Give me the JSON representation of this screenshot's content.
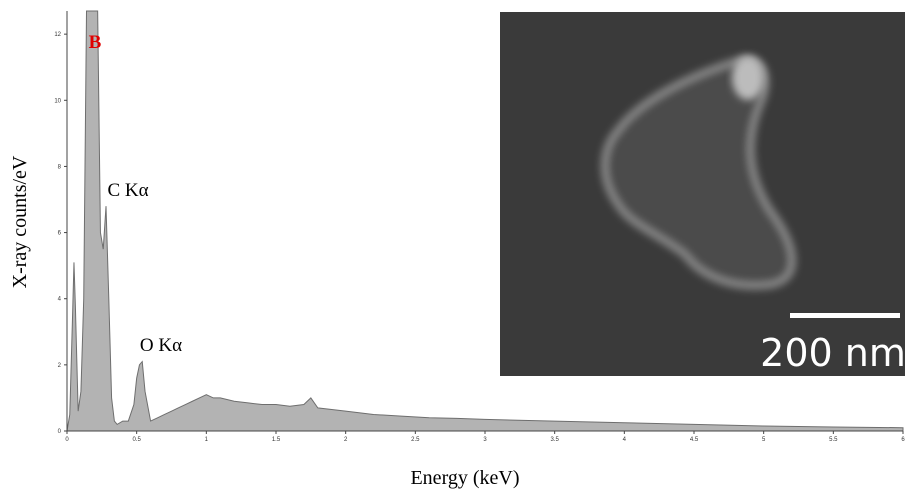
{
  "chart_data": {
    "type": "area",
    "x_label": "Energy (keV)",
    "y_label": "X-ray counts/eV",
    "x": [
      0,
      0.02,
      0.04,
      0.05,
      0.06,
      0.08,
      0.1,
      0.12,
      0.14,
      0.16,
      0.18,
      0.2,
      0.22,
      0.24,
      0.26,
      0.28,
      0.3,
      0.32,
      0.34,
      0.36,
      0.4,
      0.44,
      0.48,
      0.5,
      0.52,
      0.54,
      0.56,
      0.6,
      0.65,
      0.7,
      0.75,
      0.8,
      0.85,
      0.9,
      0.95,
      1.0,
      1.05,
      1.1,
      1.2,
      1.3,
      1.4,
      1.5,
      1.6,
      1.7,
      1.75,
      1.8,
      1.9,
      2.0,
      2.2,
      2.4,
      2.6,
      2.8,
      3.0,
      3.5,
      4.0,
      4.5,
      5.0,
      5.5,
      6.0
    ],
    "values": [
      0,
      0.5,
      3.5,
      5.1,
      3.8,
      0.6,
      1.2,
      4.0,
      12.7,
      12.7,
      12.7,
      12.7,
      12.7,
      6.0,
      5.5,
      6.8,
      4.0,
      1.0,
      0.3,
      0.2,
      0.3,
      0.3,
      0.8,
      1.6,
      2.0,
      2.1,
      1.2,
      0.3,
      0.4,
      0.5,
      0.6,
      0.7,
      0.8,
      0.9,
      1.0,
      1.1,
      1.0,
      1.0,
      0.9,
      0.85,
      0.8,
      0.8,
      0.75,
      0.8,
      1.0,
      0.7,
      0.65,
      0.6,
      0.5,
      0.45,
      0.4,
      0.38,
      0.35,
      0.3,
      0.25,
      0.2,
      0.15,
      0.12,
      0.1
    ],
    "color": "#b3b3b3",
    "xlim": [
      0,
      6
    ],
    "ylim": [
      0,
      12.7
    ],
    "xticks": [
      0,
      0.5,
      1,
      1.5,
      2,
      2.5,
      3,
      3.5,
      4,
      4.5,
      5,
      5.5,
      6
    ],
    "yticks": [
      0,
      2,
      4,
      6,
      8,
      10,
      12
    ],
    "annotations": [
      "B",
      "C Kα",
      "O Kα"
    ],
    "inset_scale_label": "200 nm"
  }
}
